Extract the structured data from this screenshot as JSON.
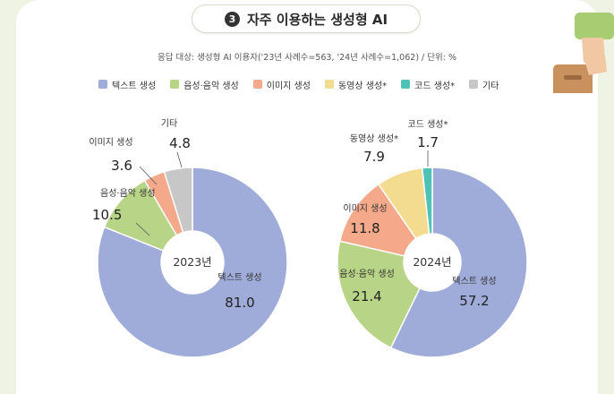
{
  "header": {
    "badge": "3",
    "title": "자주 이용하는 생성형 AI",
    "subtitle": "응답 대상: 생성형 AI 이용자('23년 사례수=563, '24년 사례수=1,062) / 단위: %"
  },
  "legend": [
    {
      "label": "텍스트 생성",
      "color": "#9fabd9"
    },
    {
      "label": "음성·음악 생성",
      "color": "#b8d486"
    },
    {
      "label": "이미지 생성",
      "color": "#f4a98a"
    },
    {
      "label": "동영상 생성*",
      "color": "#f3dc8f"
    },
    {
      "label": "코드 생성*",
      "color": "#4fc1b6"
    },
    {
      "label": "기타",
      "color": "#c7c7c7"
    }
  ],
  "chart_data": [
    {
      "type": "pie",
      "donut": true,
      "center_label": "2023년",
      "slices": [
        {
          "label": "텍스트 생성",
          "value": 81.0,
          "value_text": "81.0",
          "color": "#9fabd9"
        },
        {
          "label": "음성·음악 생성",
          "value": 10.5,
          "value_text": "10.5",
          "color": "#b8d486"
        },
        {
          "label": "이미지 생성",
          "value": 3.6,
          "value_text": "3.6",
          "color": "#f4a98a"
        },
        {
          "label": "기타",
          "value": 4.8,
          "value_text": "4.8",
          "color": "#c7c7c7"
        }
      ]
    },
    {
      "type": "pie",
      "donut": true,
      "center_label": "2024년",
      "slices": [
        {
          "label": "텍스트 생성",
          "value": 57.2,
          "value_text": "57.2",
          "color": "#9fabd9"
        },
        {
          "label": "음성·음악 생성",
          "value": 21.4,
          "value_text": "21.4",
          "color": "#b8d486"
        },
        {
          "label": "이미지 생성",
          "value": 11.8,
          "value_text": "11.8",
          "color": "#f4a98a"
        },
        {
          "label": "동영상 생성*",
          "value": 7.9,
          "value_text": "7.9",
          "color": "#f3dc8f"
        },
        {
          "label": "코드 생성*",
          "value": 1.7,
          "value_text": "1.7",
          "color": "#4fc1b6"
        }
      ]
    }
  ]
}
